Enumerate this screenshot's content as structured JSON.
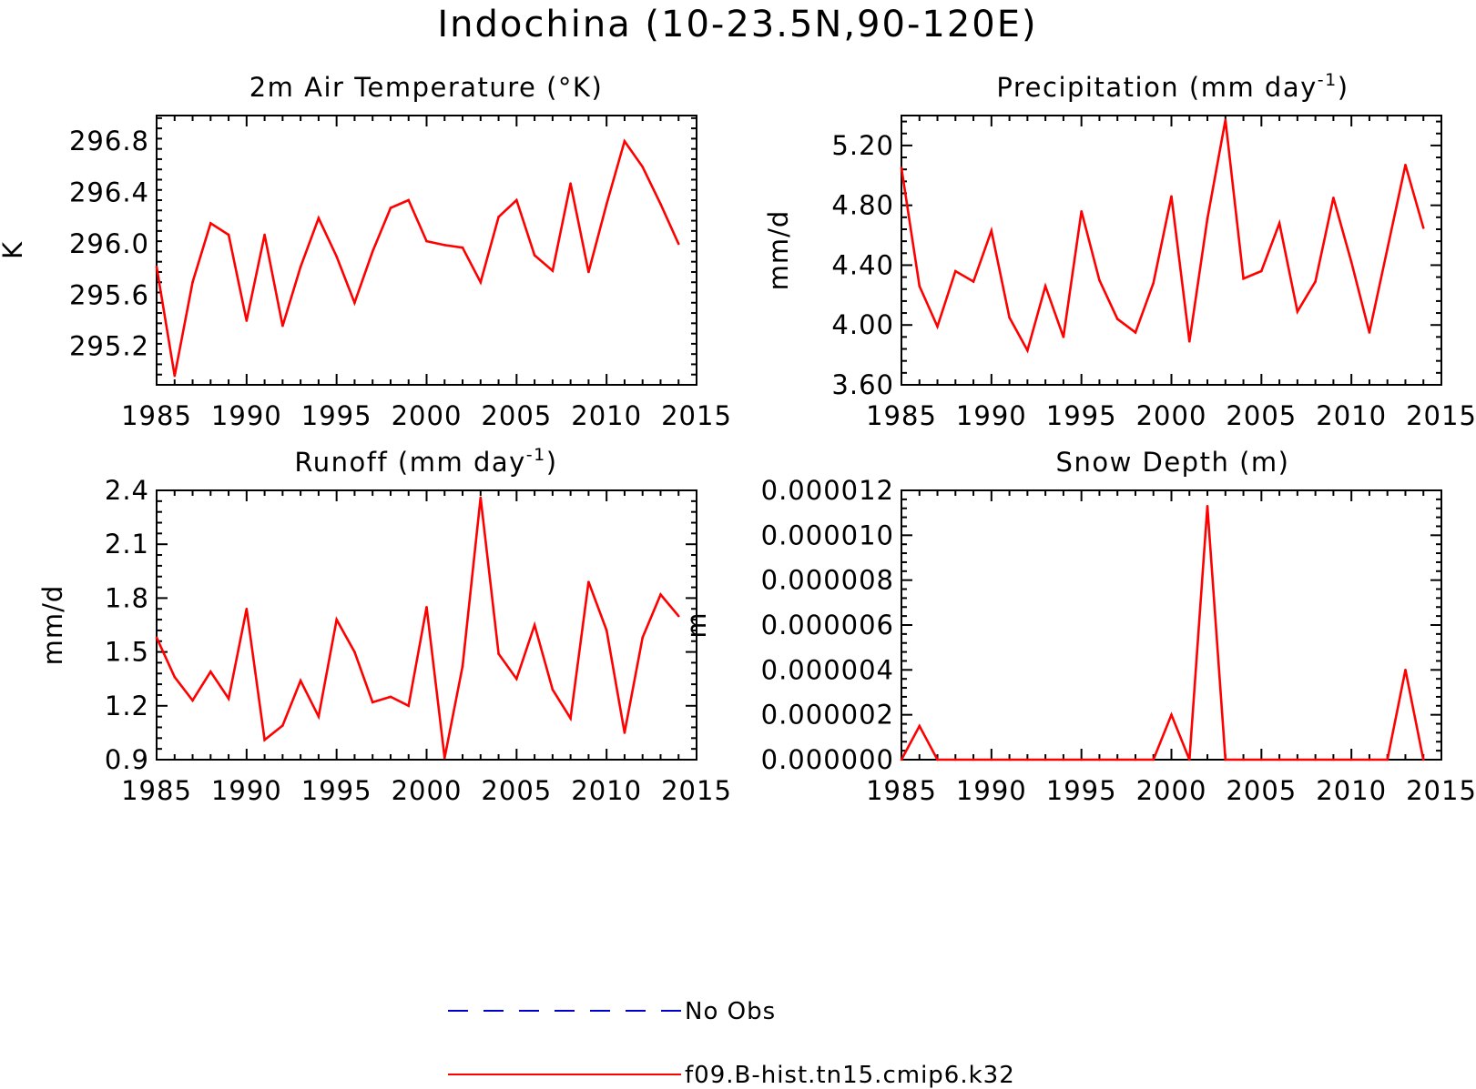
{
  "title": "Indochina (10-23.5N,90-120E)",
  "legend": [
    {
      "label": "No Obs",
      "color": "#0000cc",
      "dash": "dashed"
    },
    {
      "label": "f09.B-hist.tn15.cmip6.k32",
      "color": "#ff0000",
      "dash": "solid"
    }
  ],
  "chart_data": [
    {
      "type": "line",
      "title": "2m Air Temperature (°K)",
      "ylabel": "K",
      "xlabel": "",
      "xlim": [
        1985,
        2015
      ],
      "ylim": [
        294.9,
        297.0
      ],
      "xticks": [
        1985,
        1990,
        1995,
        2000,
        2005,
        2010,
        2015
      ],
      "yticks": [
        295.2,
        295.6,
        296.0,
        296.4,
        296.8
      ],
      "ytick_labels": [
        "295.2",
        "295.6",
        "296.0",
        "296.4",
        "296.8"
      ],
      "series": [
        {
          "name": "f09.B-hist.tn15.cmip6.k32",
          "color": "#ff0000",
          "x": [
            1985,
            1986,
            1987,
            1988,
            1989,
            1990,
            1991,
            1992,
            1993,
            1994,
            1995,
            1996,
            1997,
            1998,
            1999,
            2000,
            2001,
            2002,
            2003,
            2004,
            2005,
            2006,
            2007,
            2008,
            2009,
            2010,
            2011,
            2012,
            2013,
            2014
          ],
          "values": [
            295.82,
            294.97,
            295.7,
            296.16,
            296.07,
            295.4,
            296.07,
            295.36,
            295.82,
            296.2,
            295.9,
            295.54,
            295.94,
            296.28,
            296.34,
            296.02,
            295.99,
            295.97,
            295.7,
            296.21,
            296.34,
            295.91,
            295.79,
            296.47,
            295.78,
            296.31,
            296.8,
            296.6,
            296.31,
            296.0
          ]
        }
      ]
    },
    {
      "type": "line",
      "title": "Precipitation (mm day-1)",
      "ylabel": "mm/d",
      "xlabel": "",
      "xlim": [
        1985,
        2015
      ],
      "ylim": [
        3.6,
        5.4
      ],
      "xticks": [
        1985,
        1990,
        1995,
        2000,
        2005,
        2010,
        2015
      ],
      "yticks": [
        3.6,
        4.0,
        4.4,
        4.8,
        5.2
      ],
      "ytick_labels": [
        "3.60",
        "4.00",
        "4.40",
        "4.80",
        "5.20"
      ],
      "series": [
        {
          "name": "f09.B-hist.tn15.cmip6.k32",
          "color": "#ff0000",
          "x": [
            1985,
            1986,
            1987,
            1988,
            1989,
            1990,
            1991,
            1992,
            1993,
            1994,
            1995,
            1996,
            1997,
            1998,
            1999,
            2000,
            2001,
            2002,
            2003,
            2004,
            2005,
            2006,
            2007,
            2008,
            2009,
            2010,
            2011,
            2012,
            2013,
            2014
          ],
          "values": [
            5.05,
            4.26,
            3.99,
            4.36,
            4.29,
            4.63,
            4.05,
            3.83,
            4.26,
            3.92,
            4.76,
            4.3,
            4.04,
            3.95,
            4.28,
            4.86,
            3.89,
            4.71,
            5.37,
            4.31,
            4.36,
            4.68,
            4.09,
            4.29,
            4.85,
            4.42,
            3.95,
            4.51,
            5.07,
            4.65
          ]
        }
      ]
    },
    {
      "type": "line",
      "title": "Runoff (mm day-1)",
      "ylabel": "mm/d",
      "xlabel": "",
      "xlim": [
        1985,
        2015
      ],
      "ylim": [
        0.9,
        2.4
      ],
      "xticks": [
        1985,
        1990,
        1995,
        2000,
        2005,
        2010,
        2015
      ],
      "yticks": [
        0.9,
        1.2,
        1.5,
        1.8,
        2.1,
        2.4
      ],
      "ytick_labels": [
        "0.9",
        "1.2",
        "1.5",
        "1.8",
        "2.1",
        "2.4"
      ],
      "series": [
        {
          "name": "f09.B-hist.tn15.cmip6.k32",
          "color": "#ff0000",
          "x": [
            1985,
            1986,
            1987,
            1988,
            1989,
            1990,
            1991,
            1992,
            1993,
            1994,
            1995,
            1996,
            1997,
            1998,
            1999,
            2000,
            2001,
            2002,
            2003,
            2004,
            2005,
            2006,
            2007,
            2008,
            2009,
            2010,
            2011,
            2012,
            2013,
            2014
          ],
          "values": [
            1.58,
            1.36,
            1.23,
            1.39,
            1.24,
            1.74,
            1.01,
            1.09,
            1.34,
            1.14,
            1.68,
            1.5,
            1.22,
            1.25,
            1.2,
            1.75,
            0.91,
            1.42,
            2.36,
            1.49,
            1.35,
            1.65,
            1.29,
            1.13,
            1.89,
            1.62,
            1.05,
            1.58,
            1.82,
            1.7
          ]
        }
      ]
    },
    {
      "type": "line",
      "title": "Snow Depth (m)",
      "ylabel": "m",
      "xlabel": "",
      "xlim": [
        1985,
        2015
      ],
      "ylim": [
        0,
        1.2e-05
      ],
      "xticks": [
        1985,
        1990,
        1995,
        2000,
        2005,
        2010,
        2015
      ],
      "yticks": [
        0,
        2e-06,
        4e-06,
        6e-06,
        8e-06,
        1e-05,
        1.2e-05
      ],
      "ytick_labels": [
        "0.000000",
        "0.000002",
        "0.000004",
        "0.000006",
        "0.000008",
        "0.000010",
        "0.000012"
      ],
      "series": [
        {
          "name": "f09.B-hist.tn15.cmip6.k32",
          "color": "#ff0000",
          "x": [
            1985,
            1986,
            1987,
            1988,
            1989,
            1990,
            1991,
            1992,
            1993,
            1994,
            1995,
            1996,
            1997,
            1998,
            1999,
            2000,
            2001,
            2002,
            2003,
            2004,
            2005,
            2006,
            2007,
            2008,
            2009,
            2010,
            2011,
            2012,
            2013,
            2014
          ],
          "values": [
            0,
            1.5e-06,
            0,
            0,
            0,
            0,
            0,
            0,
            0,
            0,
            0,
            0,
            0,
            0,
            0,
            2e-06,
            0,
            1.13e-05,
            0,
            0,
            0,
            0,
            0,
            0,
            0,
            0,
            0,
            0,
            4e-06,
            0
          ]
        }
      ]
    }
  ]
}
